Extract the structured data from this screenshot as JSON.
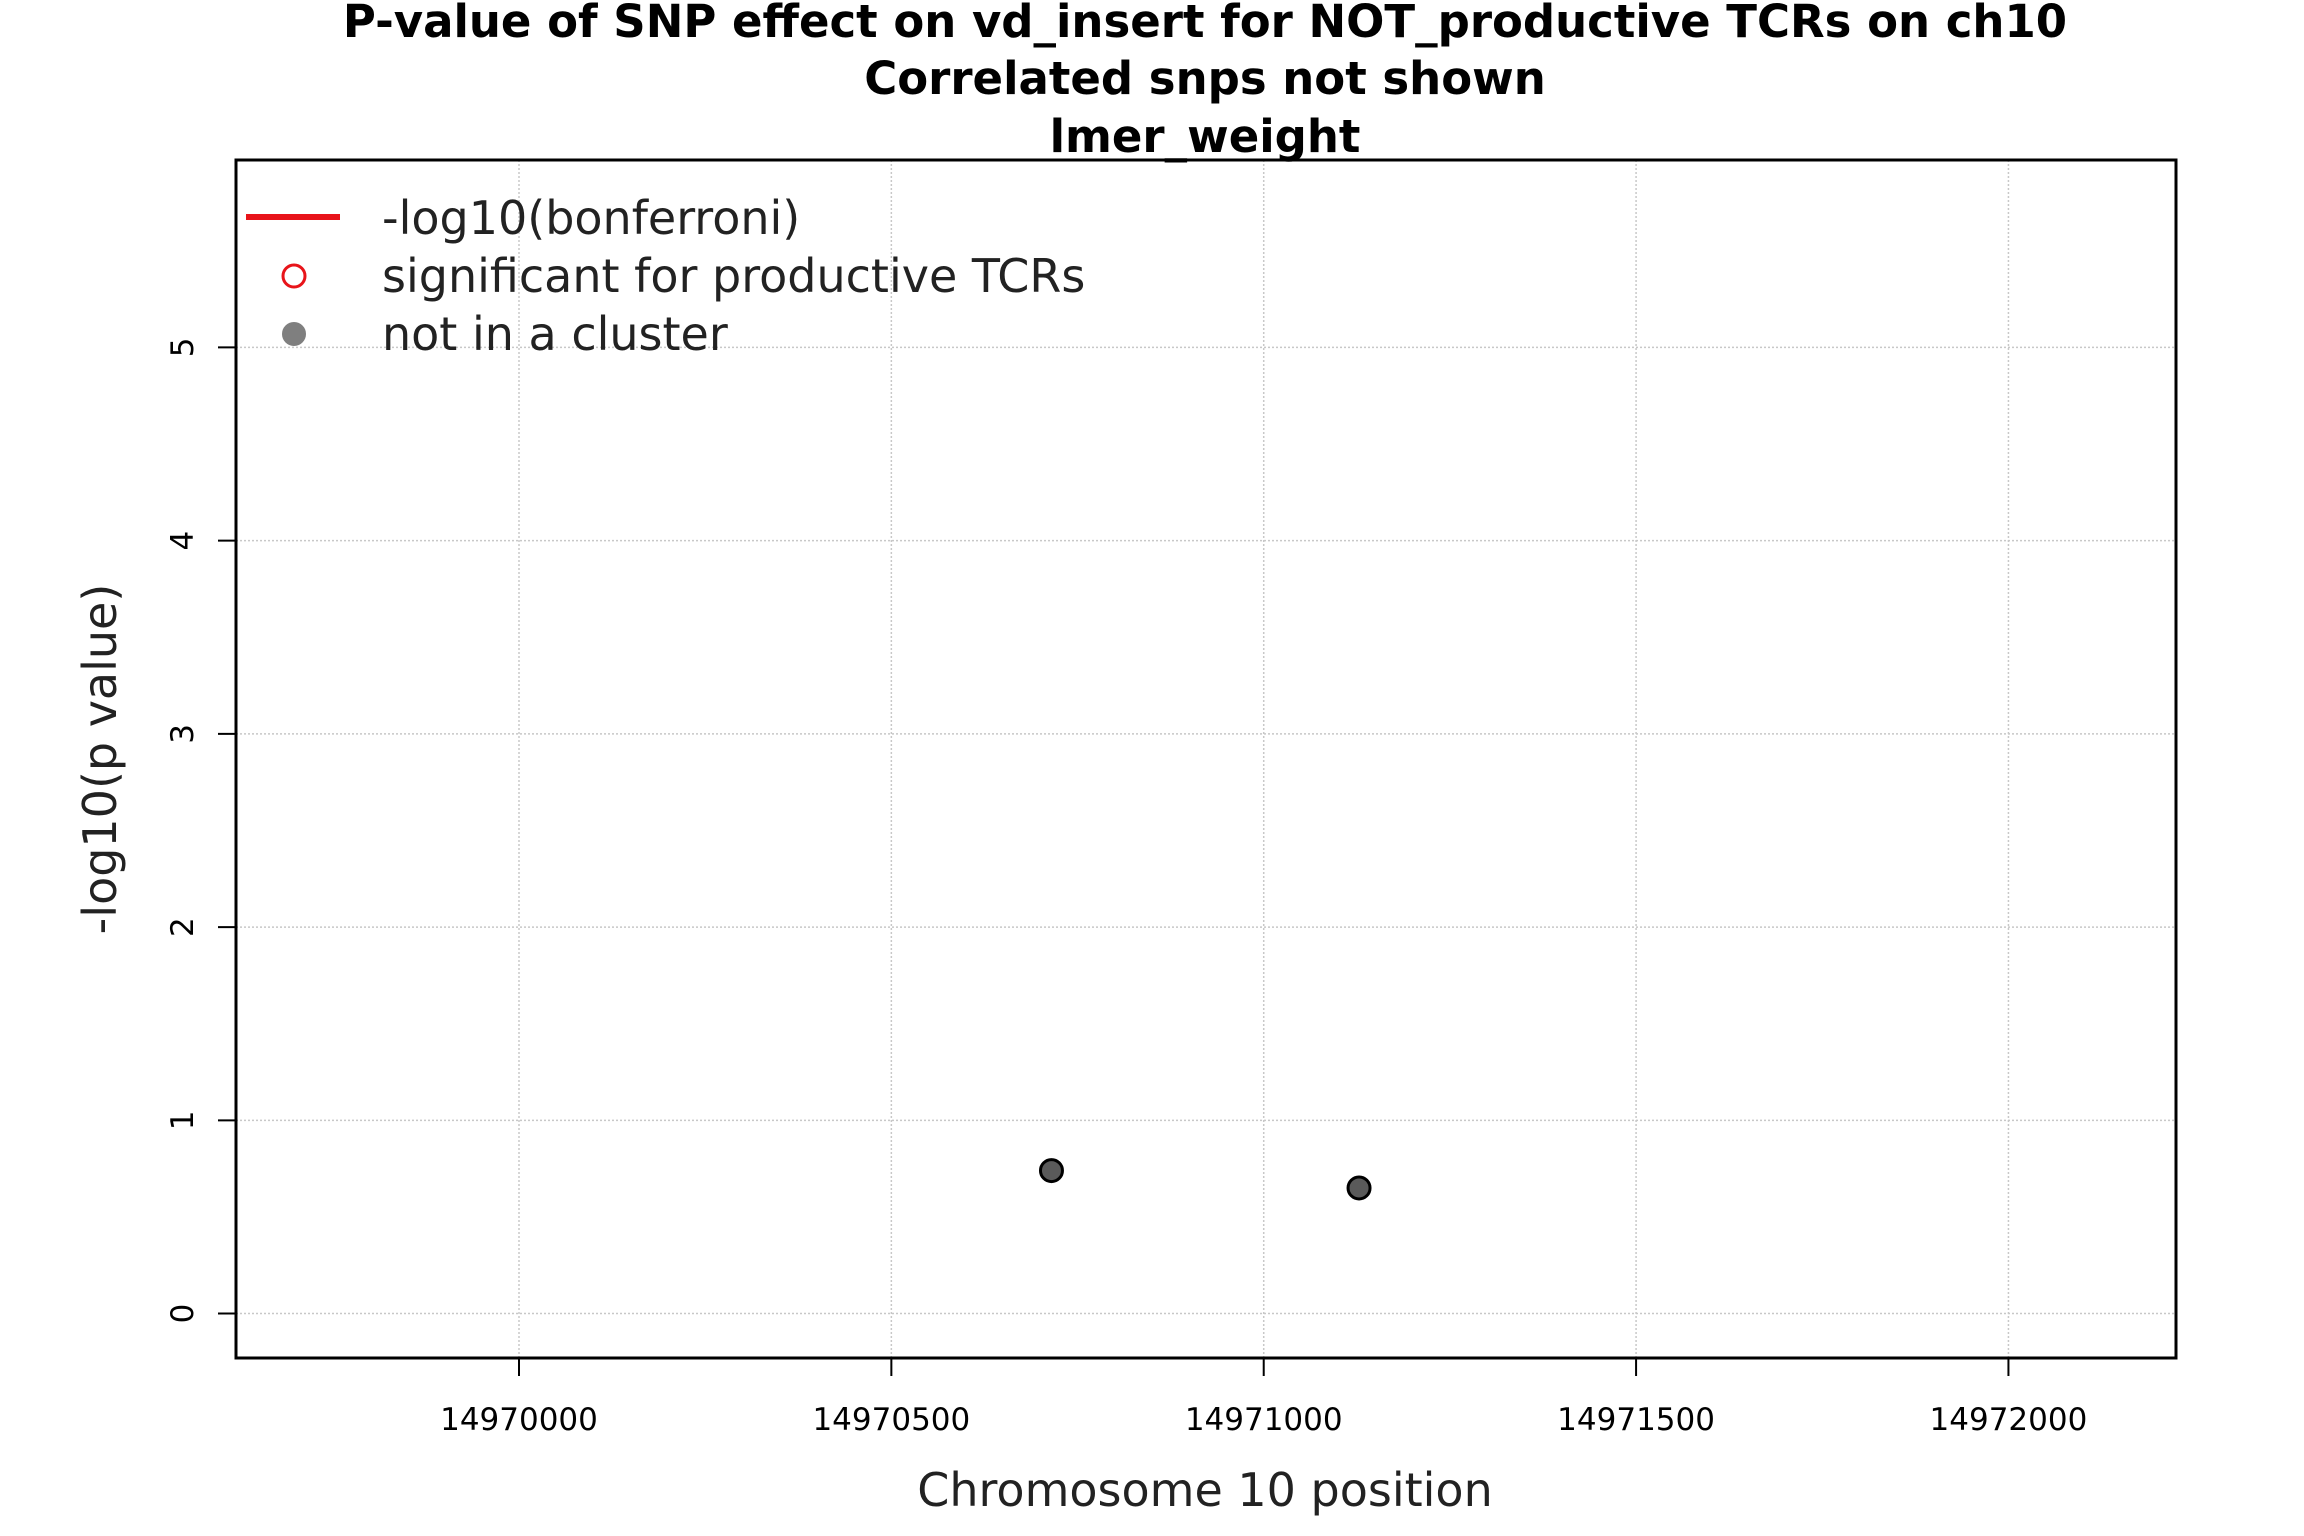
{
  "chart_data": {
    "type": "scatter",
    "title_lines": [
      "P-value of SNP effect on vd_insert for NOT_productive TCRs on ch10",
      "Correlated snps not shown",
      "lmer_weight"
    ],
    "xlabel": "Chromosome 10 position",
    "ylabel": "-log10(p value)",
    "xlim": [
      14969620,
      14972225
    ],
    "ylim": [
      -0.23,
      5.97
    ],
    "x_ticks": [
      14970000,
      14970500,
      14971000,
      14971500,
      14972000
    ],
    "x_tick_labels": [
      "14970000",
      "14970500",
      "14971000",
      "14971500",
      "14972000"
    ],
    "y_ticks": [
      0,
      1,
      2,
      3,
      4,
      5
    ],
    "y_tick_labels": [
      "0",
      "1",
      "2",
      "3",
      "4",
      "5"
    ],
    "grid": true,
    "legend_position": "top-left",
    "legend": [
      {
        "label": "-log10(bonferroni)",
        "symbol": "line",
        "color": "#e8141a"
      },
      {
        "label": "significant for productive TCRs",
        "symbol": "open-circle",
        "color": "#e8141a"
      },
      {
        "label": "not in a cluster",
        "symbol": "filled-circle",
        "color": "#7f7f7f"
      }
    ],
    "series": [
      {
        "name": "not in a cluster",
        "points": [
          {
            "x": 14970715,
            "y": 0.74
          },
          {
            "x": 14971128,
            "y": 0.65
          }
        ]
      }
    ],
    "colors": {
      "point_fill": "#5a5a5a",
      "point_edge": "#000000",
      "grid": "#c8c8c8",
      "bonferroni": "#e8141a"
    }
  }
}
